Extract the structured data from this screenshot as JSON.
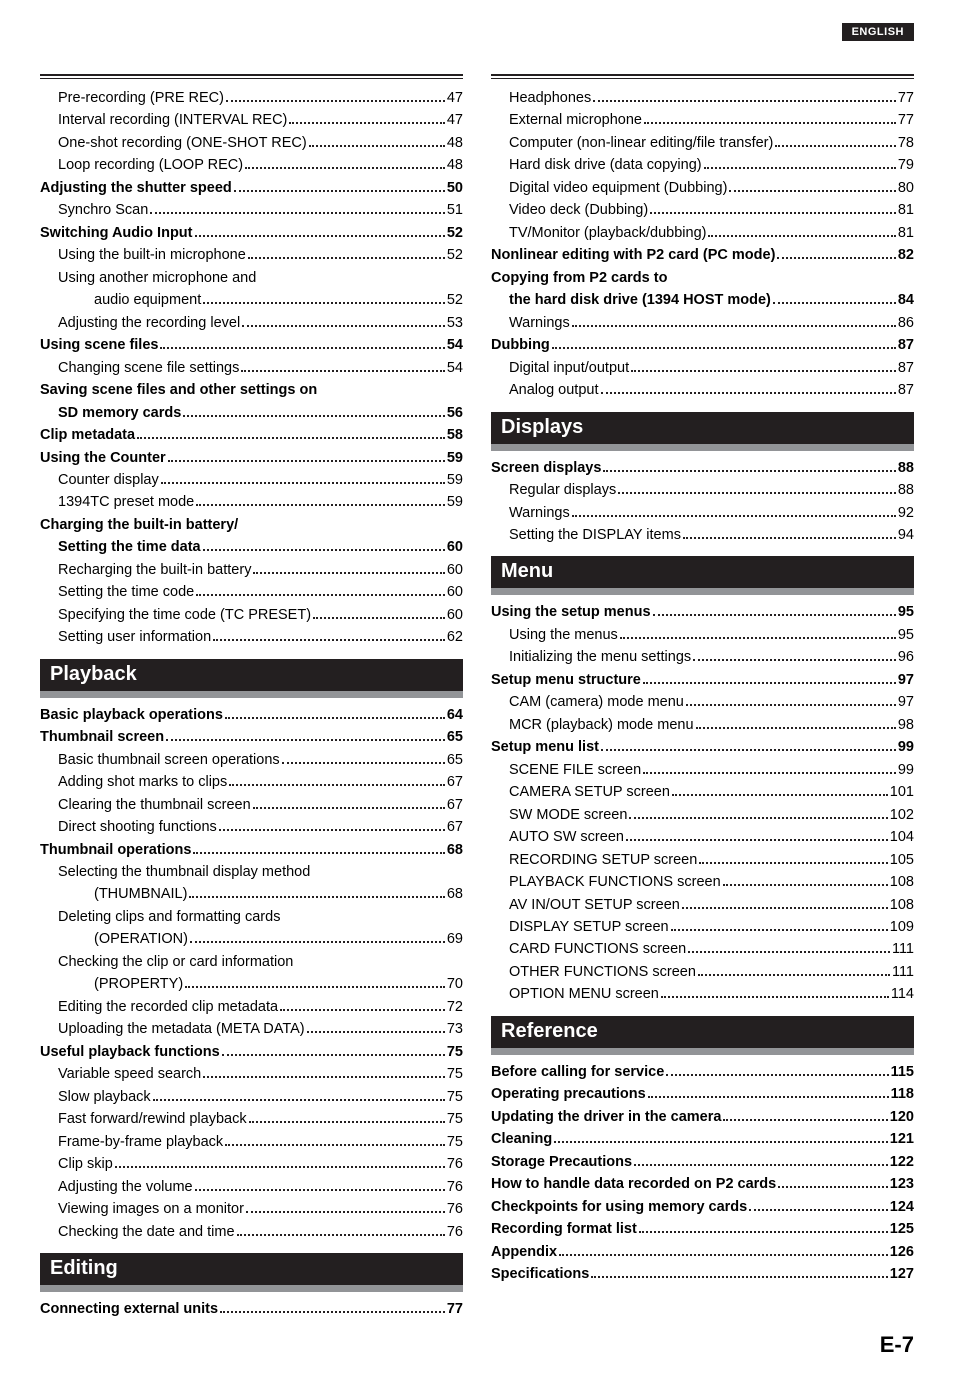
{
  "badge": "ENGLISH",
  "footer_page": "E-7",
  "colors": {
    "badge_bg": "#231f20",
    "badge_text": "#ffffff",
    "section_bg": "#231f20",
    "section_underline": "#929497",
    "text": "#000000",
    "page_bg": "#ffffff"
  },
  "left": {
    "top_rule": true,
    "blocks": [
      {
        "type": "line",
        "indent": 1,
        "bold": false,
        "label": "Pre-recording (PRE REC)",
        "page": "47"
      },
      {
        "type": "line",
        "indent": 1,
        "bold": false,
        "label": "Interval recording (INTERVAL REC)",
        "page": "47"
      },
      {
        "type": "line",
        "indent": 1,
        "bold": false,
        "label": "One-shot recording (ONE-SHOT REC)",
        "page": "48"
      },
      {
        "type": "line",
        "indent": 1,
        "bold": false,
        "label": "Loop recording (LOOP REC)",
        "page": "48"
      },
      {
        "type": "line",
        "indent": 0,
        "bold": true,
        "label": "Adjusting the shutter speed",
        "page": "50"
      },
      {
        "type": "line",
        "indent": 1,
        "bold": false,
        "label": "Synchro Scan",
        "page": "51"
      },
      {
        "type": "line",
        "indent": 0,
        "bold": true,
        "label": "Switching Audio Input",
        "page": "52"
      },
      {
        "type": "line",
        "indent": 1,
        "bold": false,
        "label": "Using the built-in microphone",
        "page": "52"
      },
      {
        "type": "wrap2",
        "indent": 1,
        "bold": false,
        "label1": "Using another microphone and",
        "label2": "audio equipment",
        "page": "52"
      },
      {
        "type": "line",
        "indent": 1,
        "bold": false,
        "label": "Adjusting the recording level",
        "page": "53"
      },
      {
        "type": "line",
        "indent": 0,
        "bold": true,
        "label": "Using scene files",
        "page": "54"
      },
      {
        "type": "line",
        "indent": 1,
        "bold": false,
        "label": "Changing scene file settings",
        "page": "54"
      },
      {
        "type": "wrap2",
        "indent": 0,
        "bold": true,
        "label1": "Saving scene files and other settings on",
        "label2_indent": 1,
        "label2": "SD memory cards",
        "page": "56"
      },
      {
        "type": "line",
        "indent": 0,
        "bold": true,
        "label": "Clip metadata",
        "page": "58"
      },
      {
        "type": "line",
        "indent": 0,
        "bold": true,
        "label": "Using the Counter",
        "page": "59"
      },
      {
        "type": "line",
        "indent": 1,
        "bold": false,
        "label": "Counter display",
        "page": "59"
      },
      {
        "type": "line",
        "indent": 1,
        "bold": false,
        "label": "1394TC preset mode",
        "page": "59"
      },
      {
        "type": "wrap2",
        "indent": 0,
        "bold": true,
        "label1": "Charging the built-in battery/",
        "label2_indent": 1,
        "label2": "Setting the time data",
        "page": "60"
      },
      {
        "type": "line",
        "indent": 1,
        "bold": false,
        "label": "Recharging the built-in battery",
        "page": "60"
      },
      {
        "type": "line",
        "indent": 1,
        "bold": false,
        "label": "Setting the time code",
        "page": "60"
      },
      {
        "type": "line",
        "indent": 1,
        "bold": false,
        "label": "Specifying the time code (TC PRESET)",
        "page": "60"
      },
      {
        "type": "line",
        "indent": 1,
        "bold": false,
        "label": "Setting user information",
        "page": "62"
      },
      {
        "type": "section",
        "label": "Playback"
      },
      {
        "type": "line",
        "indent": 0,
        "bold": true,
        "label": "Basic playback operations",
        "page": "64"
      },
      {
        "type": "line",
        "indent": 0,
        "bold": true,
        "label": "Thumbnail screen",
        "page": "65"
      },
      {
        "type": "line",
        "indent": 1,
        "bold": false,
        "label": "Basic thumbnail screen operations",
        "page": "65"
      },
      {
        "type": "line",
        "indent": 1,
        "bold": false,
        "label": "Adding shot marks to clips",
        "page": "67"
      },
      {
        "type": "line",
        "indent": 1,
        "bold": false,
        "label": "Clearing the thumbnail screen",
        "page": "67"
      },
      {
        "type": "line",
        "indent": 1,
        "bold": false,
        "label": "Direct shooting functions",
        "page": "67"
      },
      {
        "type": "line",
        "indent": 0,
        "bold": true,
        "label": "Thumbnail operations",
        "page": "68"
      },
      {
        "type": "wrap2",
        "indent": 1,
        "bold": false,
        "label1": "Selecting the thumbnail display method",
        "label2": "(THUMBNAIL)",
        "page": "68"
      },
      {
        "type": "wrap2",
        "indent": 1,
        "bold": false,
        "label1": "Deleting clips and formatting cards",
        "label2": "(OPERATION)",
        "page": "69"
      },
      {
        "type": "wrap2",
        "indent": 1,
        "bold": false,
        "label1": "Checking the clip or card information",
        "label2": "(PROPERTY)",
        "page": "70"
      },
      {
        "type": "line",
        "indent": 1,
        "bold": false,
        "label": "Editing the recorded clip metadata",
        "page": "72"
      },
      {
        "type": "line",
        "indent": 1,
        "bold": false,
        "label": "Uploading the metadata (META DATA)",
        "page": "73"
      },
      {
        "type": "line",
        "indent": 0,
        "bold": true,
        "label": "Useful playback functions",
        "page": "75"
      },
      {
        "type": "line",
        "indent": 1,
        "bold": false,
        "label": "Variable speed search",
        "page": "75"
      },
      {
        "type": "line",
        "indent": 1,
        "bold": false,
        "label": "Slow playback",
        "page": "75"
      },
      {
        "type": "line",
        "indent": 1,
        "bold": false,
        "label": "Fast forward/rewind playback",
        "page": "75"
      },
      {
        "type": "line",
        "indent": 1,
        "bold": false,
        "label": "Frame-by-frame playback",
        "page": "75"
      },
      {
        "type": "line",
        "indent": 1,
        "bold": false,
        "label": "Clip skip",
        "page": "76"
      },
      {
        "type": "line",
        "indent": 1,
        "bold": false,
        "label": "Adjusting the volume",
        "page": "76"
      },
      {
        "type": "line",
        "indent": 1,
        "bold": false,
        "label": "Viewing images on a monitor",
        "page": "76"
      },
      {
        "type": "line",
        "indent": 1,
        "bold": false,
        "label": "Checking the date and time",
        "page": "76"
      },
      {
        "type": "section",
        "label": "Editing"
      },
      {
        "type": "line",
        "indent": 0,
        "bold": true,
        "label": "Connecting external units",
        "page": "77"
      }
    ]
  },
  "right": {
    "top_rule": true,
    "blocks": [
      {
        "type": "line",
        "indent": 1,
        "bold": false,
        "label": "Headphones",
        "page": "77"
      },
      {
        "type": "line",
        "indent": 1,
        "bold": false,
        "label": "External microphone",
        "page": "77"
      },
      {
        "type": "line",
        "indent": 1,
        "bold": false,
        "label": "Computer (non-linear editing/file transfer)",
        "page": "78"
      },
      {
        "type": "line",
        "indent": 1,
        "bold": false,
        "label": "Hard disk drive (data copying)",
        "page": "79"
      },
      {
        "type": "line",
        "indent": 1,
        "bold": false,
        "label": "Digital video equipment (Dubbing)",
        "page": "80"
      },
      {
        "type": "line",
        "indent": 1,
        "bold": false,
        "label": "Video deck (Dubbing)",
        "page": "81"
      },
      {
        "type": "line",
        "indent": 1,
        "bold": false,
        "label": "TV/Monitor (playback/dubbing)",
        "page": "81"
      },
      {
        "type": "line",
        "indent": 0,
        "bold": true,
        "label": "Nonlinear editing with P2 card (PC mode)",
        "page": "82"
      },
      {
        "type": "wrap2",
        "indent": 0,
        "bold": true,
        "label1": "Copying from P2 cards to",
        "label2_indent": 1,
        "label2": "the hard disk drive (1394 HOST mode)",
        "page": "84"
      },
      {
        "type": "line",
        "indent": 1,
        "bold": false,
        "label": "Warnings",
        "page": "86"
      },
      {
        "type": "line",
        "indent": 0,
        "bold": true,
        "label": "Dubbing",
        "page": "87"
      },
      {
        "type": "line",
        "indent": 1,
        "bold": false,
        "label": "Digital input/output",
        "page": "87"
      },
      {
        "type": "line",
        "indent": 1,
        "bold": false,
        "label": "Analog output",
        "page": "87"
      },
      {
        "type": "section",
        "label": "Displays"
      },
      {
        "type": "line",
        "indent": 0,
        "bold": true,
        "label": "Screen displays",
        "page": "88"
      },
      {
        "type": "line",
        "indent": 1,
        "bold": false,
        "label": "Regular displays",
        "page": "88"
      },
      {
        "type": "line",
        "indent": 1,
        "bold": false,
        "label": "Warnings",
        "page": "92"
      },
      {
        "type": "line",
        "indent": 1,
        "bold": false,
        "label": "Setting the DISPLAY items",
        "page": "94"
      },
      {
        "type": "section",
        "label": "Menu"
      },
      {
        "type": "line",
        "indent": 0,
        "bold": true,
        "label": "Using the setup menus",
        "page": "95"
      },
      {
        "type": "line",
        "indent": 1,
        "bold": false,
        "label": "Using the menus",
        "page": "95"
      },
      {
        "type": "line",
        "indent": 1,
        "bold": false,
        "label": "Initializing the menu settings",
        "page": "96"
      },
      {
        "type": "line",
        "indent": 0,
        "bold": true,
        "label": "Setup menu structure",
        "page": "97"
      },
      {
        "type": "line",
        "indent": 1,
        "bold": false,
        "label": "CAM (camera) mode menu",
        "page": "97"
      },
      {
        "type": "line",
        "indent": 1,
        "bold": false,
        "label": "MCR (playback) mode menu",
        "page": "98"
      },
      {
        "type": "line",
        "indent": 0,
        "bold": true,
        "label": "Setup menu list",
        "page": "99"
      },
      {
        "type": "line",
        "indent": 1,
        "bold": false,
        "label": "SCENE FILE screen",
        "page": "99"
      },
      {
        "type": "line",
        "indent": 1,
        "bold": false,
        "label": "CAMERA SETUP screen",
        "page": "101"
      },
      {
        "type": "line",
        "indent": 1,
        "bold": false,
        "label": "SW MODE screen",
        "page": "102"
      },
      {
        "type": "line",
        "indent": 1,
        "bold": false,
        "label": "AUTO SW screen",
        "page": "104"
      },
      {
        "type": "line",
        "indent": 1,
        "bold": false,
        "label": "RECORDING SETUP screen",
        "page": "105"
      },
      {
        "type": "line",
        "indent": 1,
        "bold": false,
        "label": "PLAYBACK FUNCTIONS screen",
        "page": "108"
      },
      {
        "type": "line",
        "indent": 1,
        "bold": false,
        "label": "AV IN/OUT SETUP screen",
        "page": "108"
      },
      {
        "type": "line",
        "indent": 1,
        "bold": false,
        "label": "DISPLAY SETUP screen",
        "page": "109"
      },
      {
        "type": "line",
        "indent": 1,
        "bold": false,
        "label": "CARD FUNCTIONS screen",
        "page": "111"
      },
      {
        "type": "line",
        "indent": 1,
        "bold": false,
        "label": "OTHER FUNCTIONS screen",
        "page": "111"
      },
      {
        "type": "line",
        "indent": 1,
        "bold": false,
        "label": "OPTION MENU screen",
        "page": "114"
      },
      {
        "type": "section",
        "label": "Reference"
      },
      {
        "type": "line",
        "indent": 0,
        "bold": true,
        "label": "Before calling for service",
        "page": "115"
      },
      {
        "type": "line",
        "indent": 0,
        "bold": true,
        "label": "Operating precautions",
        "page": "118"
      },
      {
        "type": "line",
        "indent": 0,
        "bold": true,
        "label": "Updating the driver in the camera",
        "page": "120"
      },
      {
        "type": "line",
        "indent": 0,
        "bold": true,
        "label": "Cleaning",
        "page": "121"
      },
      {
        "type": "line",
        "indent": 0,
        "bold": true,
        "label": "Storage Precautions",
        "page": "122"
      },
      {
        "type": "line",
        "indent": 0,
        "bold": true,
        "label": "How to handle data recorded on P2 cards",
        "page": "123"
      },
      {
        "type": "line",
        "indent": 0,
        "bold": true,
        "label": "Checkpoints for using memory cards",
        "page": "124"
      },
      {
        "type": "line",
        "indent": 0,
        "bold": true,
        "label": "Recording format list",
        "page": "125"
      },
      {
        "type": "line",
        "indent": 0,
        "bold": true,
        "label": "Appendix",
        "page": "126"
      },
      {
        "type": "line",
        "indent": 0,
        "bold": true,
        "label": "Specifications",
        "page": "127"
      }
    ]
  }
}
